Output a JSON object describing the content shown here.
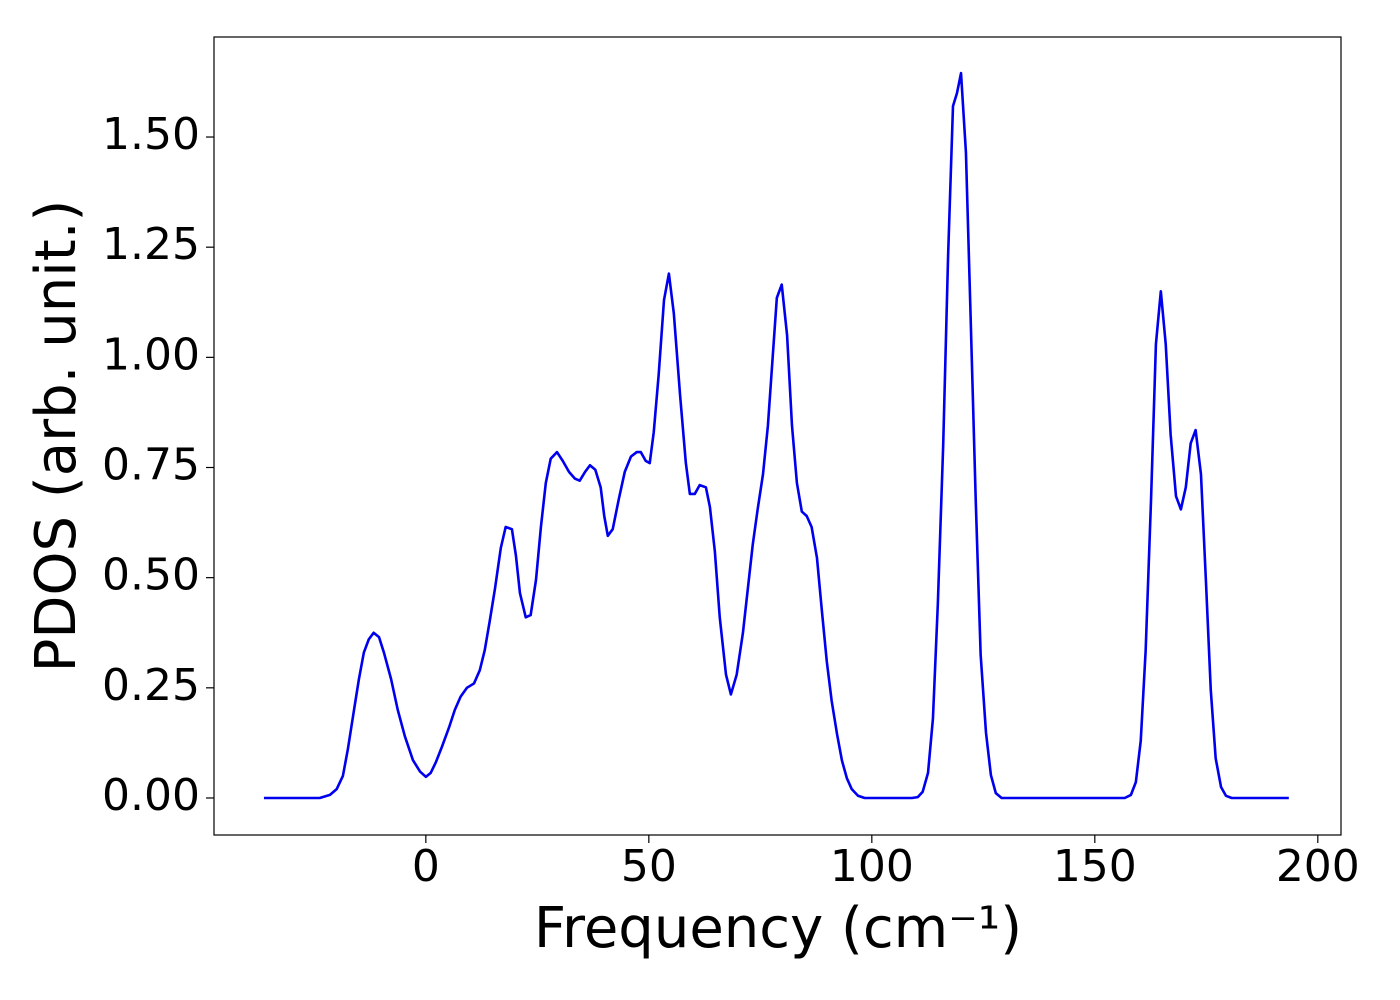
{
  "chart_data": {
    "type": "line",
    "xlabel": "Frequency (cm⁻¹)",
    "ylabel": "PDOS (arb. unit.)",
    "xlim": [
      -47.5,
      205.2
    ],
    "ylim": [
      -0.084,
      1.727
    ],
    "xticks": [
      0,
      50,
      100,
      150,
      200
    ],
    "yticks": [
      {
        "value": 0,
        "label": "0.00"
      },
      {
        "value": 0.25,
        "label": "0.25"
      },
      {
        "value": 0.5,
        "label": "0.50"
      },
      {
        "value": 0.75,
        "label": "0.75"
      },
      {
        "value": 1,
        "label": "1.00"
      },
      {
        "value": 1.25,
        "label": "1.25"
      },
      {
        "value": 1.5,
        "label": "1.50"
      }
    ],
    "color": "#0000ee",
    "x": [
      -36.3,
      -23.8,
      -21.5,
      -20,
      -18.6,
      -17.5,
      -16.1,
      -15,
      -13.9,
      -12.8,
      -11.7,
      -10.5,
      -9.4,
      -7.8,
      -6.3,
      -4.7,
      -2.9,
      -1.3,
      0,
      1.1,
      2.2,
      3.6,
      5.2,
      6.5,
      7.8,
      9.2,
      10.8,
      12.1,
      13.2,
      14.3,
      15.5,
      16.8,
      17.9,
      19.3,
      20.2,
      21.1,
      22.4,
      23.5,
      24.7,
      25.8,
      26.9,
      28,
      29.4,
      30.7,
      32.1,
      33.4,
      34.5,
      35.7,
      36.8,
      38,
      39.2,
      40,
      40.8,
      41.9,
      43.3,
      44.6,
      46,
      47.3,
      48.2,
      49.3,
      50.2,
      51.1,
      52.2,
      53.4,
      54.5,
      55.6,
      57,
      58.3,
      59.2,
      60.3,
      61.4,
      62.8,
      63.7,
      64.8,
      65.9,
      67.3,
      68.4,
      69.7,
      71.1,
      72.2,
      73.3,
      74.4,
      75.6,
      76.7,
      77.8,
      78.7,
      79.8,
      81,
      82.1,
      83.2,
      84.3,
      85.4,
      86.5,
      87.7,
      88.8,
      89.9,
      91,
      92.2,
      93.3,
      94.4,
      95.5,
      96.9,
      98.4,
      109,
      110.3,
      111.4,
      112.6,
      113.7,
      114.8,
      116,
      117.1,
      118.2,
      119.1,
      120,
      121.1,
      122.2,
      123.3,
      124.4,
      125.6,
      126.7,
      127.8,
      129.1,
      156.7,
      158.1,
      159.2,
      160.3,
      161.4,
      162.6,
      163.7,
      164.8,
      165.9,
      167,
      168.2,
      169.3,
      170.4,
      171.5,
      172.6,
      173.8,
      174.9,
      176,
      177.1,
      178.3,
      179.4,
      180.7,
      193.5
    ],
    "y": [
      0,
      0,
      0.007,
      0.02,
      0.05,
      0.11,
      0.2,
      0.27,
      0.33,
      0.36,
      0.375,
      0.365,
      0.33,
      0.27,
      0.2,
      0.14,
      0.086,
      0.06,
      0.048,
      0.057,
      0.08,
      0.116,
      0.16,
      0.2,
      0.23,
      0.25,
      0.26,
      0.29,
      0.335,
      0.4,
      0.475,
      0.567,
      0.615,
      0.61,
      0.55,
      0.465,
      0.41,
      0.415,
      0.495,
      0.615,
      0.715,
      0.77,
      0.785,
      0.765,
      0.74,
      0.725,
      0.72,
      0.74,
      0.755,
      0.745,
      0.705,
      0.64,
      0.595,
      0.61,
      0.68,
      0.74,
      0.775,
      0.785,
      0.785,
      0.765,
      0.76,
      0.83,
      0.96,
      1.13,
      1.19,
      1.1,
      0.915,
      0.76,
      0.69,
      0.69,
      0.71,
      0.705,
      0.66,
      0.56,
      0.41,
      0.28,
      0.235,
      0.28,
      0.375,
      0.475,
      0.575,
      0.655,
      0.735,
      0.845,
      1.005,
      1.135,
      1.165,
      1.05,
      0.845,
      0.715,
      0.65,
      0.64,
      0.615,
      0.545,
      0.425,
      0.31,
      0.22,
      0.145,
      0.085,
      0.045,
      0.02,
      0.005,
      0,
      0,
      0.002,
      0.014,
      0.057,
      0.18,
      0.44,
      0.8,
      1.23,
      1.57,
      1.6,
      1.645,
      1.465,
      1.075,
      0.675,
      0.325,
      0.148,
      0.052,
      0.011,
      0,
      0,
      0.007,
      0.036,
      0.13,
      0.335,
      0.675,
      1.03,
      1.15,
      1.03,
      0.825,
      0.685,
      0.655,
      0.705,
      0.805,
      0.835,
      0.735,
      0.495,
      0.245,
      0.09,
      0.025,
      0.005,
      0,
      0
    ]
  }
}
